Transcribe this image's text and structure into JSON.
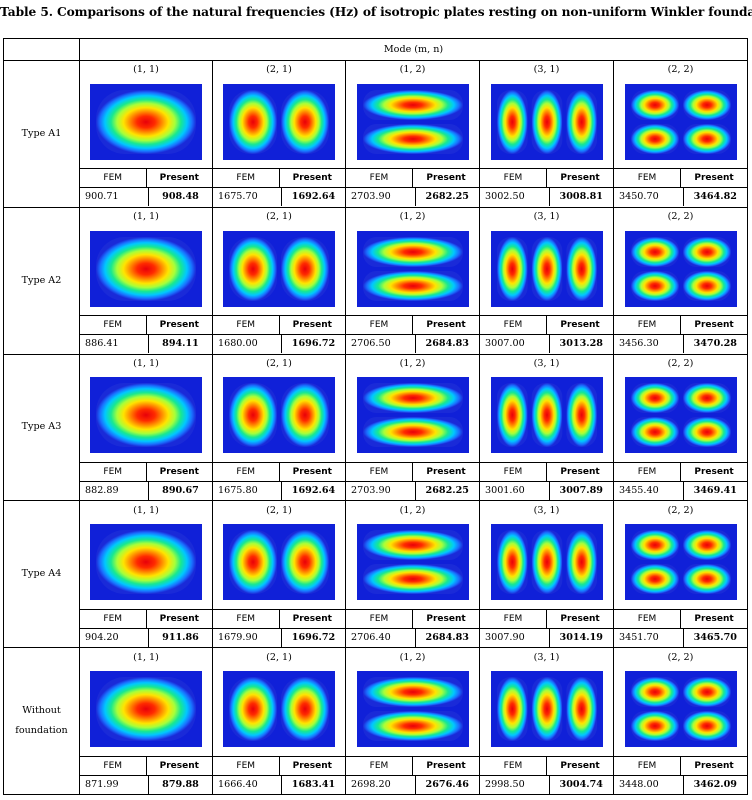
{
  "title": "Table 5. Comparisons of the natural frequencies (Hz) of isotropic plates resting on non-uniform Winkler foundation",
  "header": {
    "mode_label": "Mode (m, n)"
  },
  "col_headers": {
    "fem": "FEM",
    "present": "Present"
  },
  "colors": {
    "outer": "#1020d8",
    "core": "#ff0000"
  },
  "rows": [
    {
      "label": "Type A1",
      "cells": [
        {
          "mode": "(1, 1)",
          "m": 1,
          "n": 1,
          "fem": "900.71",
          "present": "908.48"
        },
        {
          "mode": "(2, 1)",
          "m": 2,
          "n": 1,
          "fem": "1675.70",
          "present": "1692.64"
        },
        {
          "mode": "(1, 2)",
          "m": 1,
          "n": 2,
          "fem": "2703.90",
          "present": "2682.25"
        },
        {
          "mode": "(3, 1)",
          "m": 3,
          "n": 1,
          "fem": "3002.50",
          "present": "3008.81"
        },
        {
          "mode": "(2, 2)",
          "m": 2,
          "n": 2,
          "fem": "3450.70",
          "present": "3464.82"
        }
      ]
    },
    {
      "label": "Type A2",
      "cells": [
        {
          "mode": "(1, 1)",
          "m": 1,
          "n": 1,
          "fem": "886.41",
          "present": "894.11"
        },
        {
          "mode": "(2, 1)",
          "m": 2,
          "n": 1,
          "fem": "1680.00",
          "present": "1696.72"
        },
        {
          "mode": "(1, 2)",
          "m": 1,
          "n": 2,
          "fem": "2706.50",
          "present": "2684.83"
        },
        {
          "mode": "(3, 1)",
          "m": 3,
          "n": 1,
          "fem": "3007.00",
          "present": "3013.28"
        },
        {
          "mode": "(2, 2)",
          "m": 2,
          "n": 2,
          "fem": "3456.30",
          "present": "3470.28"
        }
      ]
    },
    {
      "label": "Type A3",
      "cells": [
        {
          "mode": "(1, 1)",
          "m": 1,
          "n": 1,
          "fem": "882.89",
          "present": "890.67"
        },
        {
          "mode": "(2, 1)",
          "m": 2,
          "n": 1,
          "fem": "1675.80",
          "present": "1692.64"
        },
        {
          "mode": "(1, 2)",
          "m": 1,
          "n": 2,
          "fem": "2703.90",
          "present": "2682.25"
        },
        {
          "mode": "(3, 1)",
          "m": 3,
          "n": 1,
          "fem": "3001.60",
          "present": "3007.89"
        },
        {
          "mode": "(2, 2)",
          "m": 2,
          "n": 2,
          "fem": "3455.40",
          "present": "3469.41"
        }
      ]
    },
    {
      "label": "Type A4",
      "cells": [
        {
          "mode": "(1, 1)",
          "m": 1,
          "n": 1,
          "fem": "904.20",
          "present": "911.86"
        },
        {
          "mode": "(2, 1)",
          "m": 2,
          "n": 1,
          "fem": "1679.90",
          "present": "1696.72"
        },
        {
          "mode": "(1, 2)",
          "m": 1,
          "n": 2,
          "fem": "2706.40",
          "present": "2684.83"
        },
        {
          "mode": "(3, 1)",
          "m": 3,
          "n": 1,
          "fem": "3007.90",
          "present": "3014.19"
        },
        {
          "mode": "(2, 2)",
          "m": 2,
          "n": 2,
          "fem": "3451.70",
          "present": "3465.70"
        }
      ]
    },
    {
      "label": "Without foundation",
      "cells": [
        {
          "mode": "(1, 1)",
          "m": 1,
          "n": 1,
          "fem": "871.99",
          "present": "879.88"
        },
        {
          "mode": "(2, 1)",
          "m": 2,
          "n": 1,
          "fem": "1666.40",
          "present": "1683.41"
        },
        {
          "mode": "(1, 2)",
          "m": 1,
          "n": 2,
          "fem": "2698.20",
          "present": "2676.46"
        },
        {
          "mode": "(3, 1)",
          "m": 3,
          "n": 1,
          "fem": "2998.50",
          "present": "3004.74"
        },
        {
          "mode": "(2, 2)",
          "m": 2,
          "n": 2,
          "fem": "3448.00",
          "present": "3462.09"
        }
      ]
    }
  ]
}
